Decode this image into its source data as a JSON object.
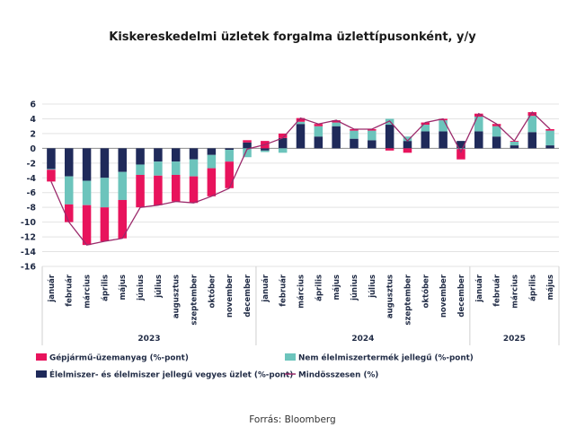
{
  "chart_data": {
    "type": "bar",
    "stacked": true,
    "title": "Kiskereskedelmi üzletek forgalma üzlettípusonként, y/y",
    "xlabel": "",
    "ylabel": "",
    "ylim": [
      -16,
      6
    ],
    "yticks": [
      6,
      4,
      2,
      0,
      -2,
      -4,
      -6,
      -8,
      -10,
      -12,
      -14,
      -16
    ],
    "grid": true,
    "legend_position": "bottom",
    "categories": [
      "január",
      "február",
      "március",
      "április",
      "május",
      "június",
      "július",
      "augusztus",
      "szeptember",
      "október",
      "november",
      "december",
      "január",
      "február",
      "március",
      "április",
      "május",
      "június",
      "július",
      "augusztus",
      "szeptember",
      "október",
      "november",
      "december",
      "január",
      "február",
      "március",
      "április",
      "május"
    ],
    "year_groups": [
      {
        "label": "2023",
        "count": 12
      },
      {
        "label": "2024",
        "count": 12
      },
      {
        "label": "2025",
        "count": 5
      }
    ],
    "series": [
      {
        "name": "Élelmiszer- és élelmiszer jellegű vegyes üzlet (%-pont)",
        "color": "#1f2a5a",
        "kind": "bar",
        "values": [
          -2.8,
          -3.8,
          -4.4,
          -4.0,
          -3.2,
          -2.2,
          -1.8,
          -1.8,
          -1.5,
          -0.9,
          -0.2,
          0.8,
          -0.3,
          1.4,
          3.3,
          1.6,
          3.0,
          1.3,
          1.1,
          3.2,
          1.0,
          2.3,
          2.3,
          1.0,
          2.3,
          1.6,
          0.4,
          2.2,
          0.4
        ]
      },
      {
        "name": "Nem élelmiszertermék jellegű (%-pont)",
        "color": "#6cc4bc",
        "kind": "bar",
        "values": [
          -0.1,
          -3.8,
          -3.3,
          -4.0,
          -3.8,
          -1.4,
          -1.9,
          -1.8,
          -2.3,
          -1.8,
          -1.6,
          -1.2,
          -0.2,
          -0.6,
          0.3,
          1.4,
          0.5,
          1.1,
          1.3,
          0.8,
          0.6,
          0.9,
          1.5,
          -0.1,
          2.0,
          1.4,
          0.5,
          2.2,
          2.0
        ]
      },
      {
        "name": "Gépjármű-üzemanyag (%-pont)",
        "color": "#e8135c",
        "kind": "bar",
        "values": [
          -1.6,
          -2.4,
          -5.4,
          -4.6,
          -5.2,
          -4.4,
          -4.0,
          -3.6,
          -3.6,
          -3.8,
          -3.6,
          0.3,
          1.0,
          0.6,
          0.5,
          0.3,
          0.3,
          0.2,
          0.2,
          -0.3,
          -0.6,
          0.3,
          0.2,
          -1.4,
          0.4,
          0.3,
          0.1,
          0.5,
          0.2
        ]
      },
      {
        "name": "Mindösszesen (%)",
        "color": "#9b2a6b",
        "kind": "line",
        "values": [
          -4.5,
          -10.0,
          -13.1,
          -12.6,
          -12.2,
          -8.0,
          -7.7,
          -7.2,
          -7.4,
          -6.5,
          -5.4,
          -0.1,
          0.5,
          1.4,
          4.1,
          3.3,
          3.8,
          2.6,
          2.6,
          3.7,
          1.0,
          3.5,
          4.0,
          -0.5,
          4.7,
          3.3,
          1.0,
          4.9,
          2.6
        ]
      }
    ],
    "source": "Forrás: Bloomberg"
  }
}
